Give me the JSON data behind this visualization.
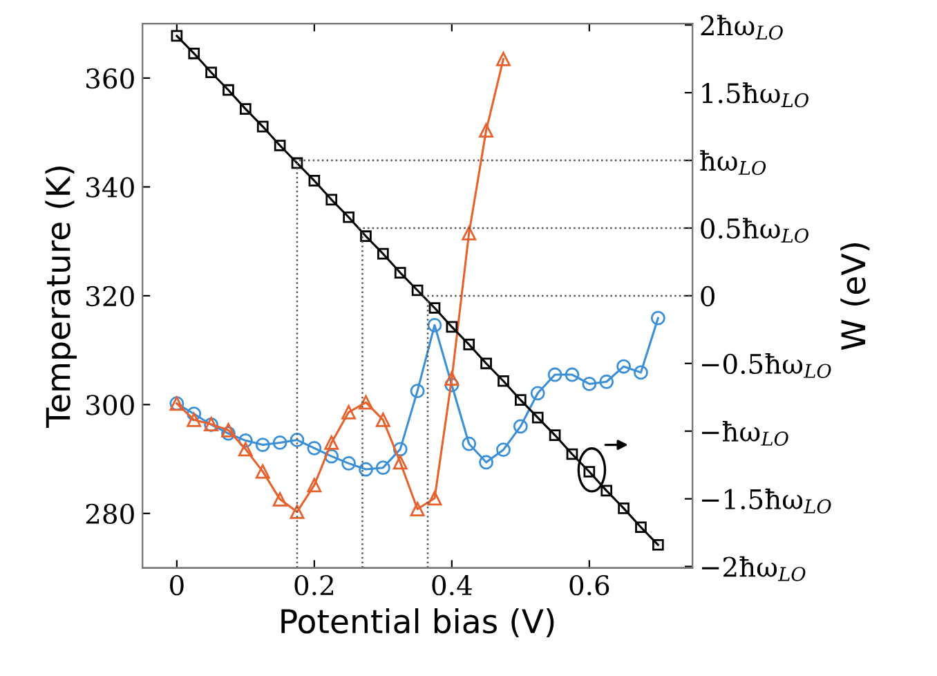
{
  "chart_data": {
    "type": "line",
    "xlabel": "Potential bias (V)",
    "ylabel": "Temperature (K)",
    "y2label": "W (eV)",
    "xlim": [
      -0.05,
      0.75
    ],
    "xticks": [
      0,
      0.2,
      0.4,
      0.6
    ],
    "ylim": [
      270,
      370
    ],
    "yticks": [
      280,
      300,
      320,
      340,
      360
    ],
    "y2lim": [
      -2.01,
      2.01
    ],
    "y2ticks": [
      {
        "value": 2,
        "label": "2ħω$_{LO}$"
      },
      {
        "value": 1.5,
        "label": "1.5ħω$_{LO}$"
      },
      {
        "value": 1,
        "label": "ħω$_{LO}$"
      },
      {
        "value": 0.5,
        "label": "0.5ħω$_{LO}$"
      },
      0,
      {
        "value": -0.5,
        "label": "−0.5ħω$_{LO}$"
      },
      {
        "value": -1,
        "label": "−ħω$_{LO}$"
      },
      {
        "value": -1.5,
        "label": "−1.5ħω$_{LO}$"
      },
      {
        "value": -2,
        "label": "−2ħω$_{LO}$"
      }
    ],
    "grid": false,
    "line_style": "solid",
    "series": [
      {
        "color": "#000000",
        "marker": "square",
        "axis": "y2",
        "x": [
          0,
          0.025,
          0.05,
          0.075,
          0.1,
          0.125,
          0.15,
          0.175,
          0.2,
          0.225,
          0.25,
          0.275,
          0.3,
          0.325,
          0.35,
          0.375,
          0.4,
          0.425,
          0.45,
          0.475,
          0.5,
          0.525,
          0.55,
          0.575,
          0.6,
          0.625,
          0.65,
          0.675,
          0.7
        ],
        "values": [
          1.92,
          1.79,
          1.65,
          1.52,
          1.38,
          1.25,
          1.11,
          0.98,
          0.85,
          0.71,
          0.58,
          0.44,
          0.31,
          0.17,
          0.04,
          -0.09,
          -0.23,
          -0.36,
          -0.5,
          -0.63,
          -0.77,
          -0.9,
          -1.03,
          -1.17,
          -1.3,
          -1.44,
          -1.57,
          -1.71,
          -1.84
        ]
      },
      {
        "color": "#3a8fd6",
        "marker": "circle",
        "x": [
          0,
          0.025,
          0.05,
          0.075,
          0.1,
          0.125,
          0.15,
          0.175,
          0.2,
          0.225,
          0.25,
          0.275,
          0.3,
          0.325,
          0.35,
          0.375,
          0.4,
          0.425,
          0.45,
          0.475,
          0.5,
          0.525,
          0.55,
          0.575,
          0.6,
          0.625,
          0.65,
          0.675,
          0.7
        ],
        "values": [
          300.2,
          298.3,
          296.3,
          294.7,
          293.4,
          292.6,
          293.0,
          293.5,
          292.0,
          290.5,
          289.2,
          288.1,
          288.4,
          291.8,
          302.5,
          314.6,
          303.6,
          292.8,
          289.4,
          291.7,
          296.0,
          302.1,
          305.5,
          305.5,
          303.8,
          304.2,
          307.0,
          305.9,
          315.9
        ]
      },
      {
        "color": "#e8602c",
        "marker": "triangle",
        "x": [
          0,
          0.025,
          0.05,
          0.075,
          0.1,
          0.125,
          0.15,
          0.175,
          0.2,
          0.225,
          0.25,
          0.275,
          0.3,
          0.325,
          0.35,
          0.375,
          0.4,
          0.425,
          0.45,
          0.475
        ],
        "values": [
          300.2,
          297.2,
          296.4,
          295.3,
          291.8,
          287.7,
          282.6,
          280.3,
          285.2,
          293.0,
          298.6,
          300.4,
          297.2,
          289.4,
          280.8,
          282.8,
          304.8,
          331.5,
          350.4,
          363.5
        ]
      }
    ],
    "ref_lines": [
      {
        "axis": "x",
        "value": 0.175,
        "color": "#555555",
        "line_style": "dotted"
      },
      {
        "axis": "x",
        "value": 0.27,
        "color": "#555555",
        "line_style": "dotted"
      },
      {
        "axis": "x",
        "value": 0.365,
        "color": "#555555",
        "line_style": "dotted"
      },
      {
        "axis": "y2",
        "value": 1,
        "color": "#555555",
        "line_style": "dotted"
      },
      {
        "axis": "y2",
        "value": 0.5,
        "color": "#555555",
        "line_style": "dotted"
      },
      {
        "axis": "y2",
        "value": 0,
        "color": "#555555",
        "line_style": "dotted"
      }
    ]
  }
}
